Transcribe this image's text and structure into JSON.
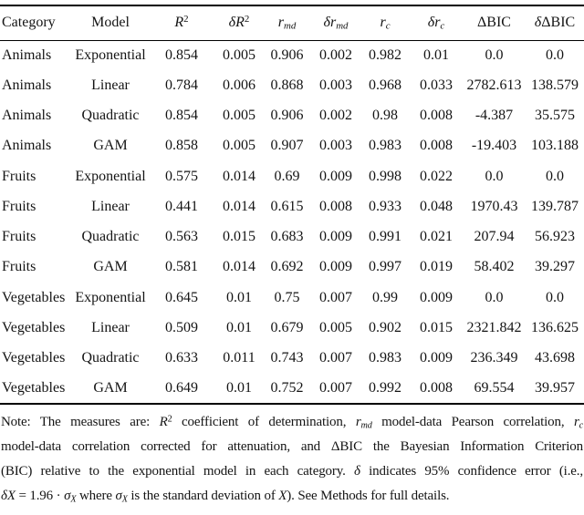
{
  "colors": {
    "background": "#ffffff",
    "text": "#141414",
    "rule": "#000000"
  },
  "table": {
    "headers": [
      {
        "segments": [
          {
            "t": "Category"
          }
        ]
      },
      {
        "segments": [
          {
            "t": "Model"
          }
        ]
      },
      {
        "segments": [
          {
            "t": "R",
            "s": "i"
          },
          {
            "t": "2",
            "s": "sup"
          }
        ]
      },
      {
        "segments": [
          {
            "t": "δR",
            "s": "i"
          },
          {
            "t": "2",
            "s": "sup"
          }
        ]
      },
      {
        "segments": [
          {
            "t": "r",
            "s": "i"
          },
          {
            "t": "md",
            "s": "subi"
          }
        ]
      },
      {
        "segments": [
          {
            "t": "δr",
            "s": "i"
          },
          {
            "t": "md",
            "s": "subi"
          }
        ]
      },
      {
        "segments": [
          {
            "t": "r",
            "s": "i"
          },
          {
            "t": "c",
            "s": "subi"
          }
        ]
      },
      {
        "segments": [
          {
            "t": "δr",
            "s": "i"
          },
          {
            "t": "c",
            "s": "subi"
          }
        ]
      },
      {
        "segments": [
          {
            "t": "ΔBIC"
          }
        ]
      },
      {
        "segments": [
          {
            "t": "δ",
            "s": "i"
          },
          {
            "t": "ΔBIC"
          }
        ]
      }
    ],
    "rows": [
      [
        "Animals",
        "Exponential",
        "0.854",
        "0.005",
        "0.906",
        "0.002",
        "0.982",
        "0.01",
        "0.0",
        "0.0"
      ],
      [
        "Animals",
        "Linear",
        "0.784",
        "0.006",
        "0.868",
        "0.003",
        "0.968",
        "0.033",
        "2782.613",
        "138.579"
      ],
      [
        "Animals",
        "Quadratic",
        "0.854",
        "0.005",
        "0.906",
        "0.002",
        "0.98",
        "0.008",
        "-4.387",
        "35.575"
      ],
      [
        "Animals",
        "GAM",
        "0.858",
        "0.005",
        "0.907",
        "0.003",
        "0.983",
        "0.008",
        "-19.403",
        "103.188"
      ],
      [
        "Fruits",
        "Exponential",
        "0.575",
        "0.014",
        "0.69",
        "0.009",
        "0.998",
        "0.022",
        "0.0",
        "0.0"
      ],
      [
        "Fruits",
        "Linear",
        "0.441",
        "0.014",
        "0.615",
        "0.008",
        "0.933",
        "0.048",
        "1970.43",
        "139.787"
      ],
      [
        "Fruits",
        "Quadratic",
        "0.563",
        "0.015",
        "0.683",
        "0.009",
        "0.991",
        "0.021",
        "207.94",
        "56.923"
      ],
      [
        "Fruits",
        "GAM",
        "0.581",
        "0.014",
        "0.692",
        "0.009",
        "0.997",
        "0.019",
        "58.402",
        "39.297"
      ],
      [
        "Vegetables",
        "Exponential",
        "0.645",
        "0.01",
        "0.75",
        "0.007",
        "0.99",
        "0.009",
        "0.0",
        "0.0"
      ],
      [
        "Vegetables",
        "Linear",
        "0.509",
        "0.01",
        "0.679",
        "0.005",
        "0.902",
        "0.015",
        "2321.842",
        "136.625"
      ],
      [
        "Vegetables",
        "Quadratic",
        "0.633",
        "0.011",
        "0.743",
        "0.007",
        "0.983",
        "0.009",
        "236.349",
        "43.698"
      ],
      [
        "Vegetables",
        "GAM",
        "0.649",
        "0.01",
        "0.752",
        "0.007",
        "0.992",
        "0.008",
        "69.554",
        "39.957"
      ]
    ]
  },
  "note": {
    "lines": [
      [
        {
          "t": "Note: The measures are: "
        },
        {
          "t": "R",
          "s": "i"
        },
        {
          "t": "2",
          "s": "sup"
        },
        {
          "t": " coefficient of determination, "
        },
        {
          "t": "r",
          "s": "i"
        },
        {
          "t": "md",
          "s": "subi"
        },
        {
          "t": " model-data Pearson correlation, "
        },
        {
          "t": "r",
          "s": "i"
        },
        {
          "t": "c",
          "s": "subi"
        }
      ],
      [
        {
          "t": "model-data correlation corrected for attenuation, and ΔBIC the Bayesian Information Criterion"
        }
      ],
      [
        {
          "t": "(BIC) relative to the exponential model in each category. "
        },
        {
          "t": "δ",
          "s": "i"
        },
        {
          "t": " indicates 95% confidence error (i.e.,"
        }
      ],
      [
        {
          "t": "δX",
          "s": "i"
        },
        {
          "t": " = 1.96 · "
        },
        {
          "t": "σ",
          "s": "i"
        },
        {
          "t": "X",
          "s": "subi"
        },
        {
          "t": " where "
        },
        {
          "t": "σ",
          "s": "i"
        },
        {
          "t": "X",
          "s": "subi"
        },
        {
          "t": " is the standard deviation of "
        },
        {
          "t": "X",
          "s": "i"
        },
        {
          "t": "). See Methods for full details."
        }
      ]
    ]
  }
}
